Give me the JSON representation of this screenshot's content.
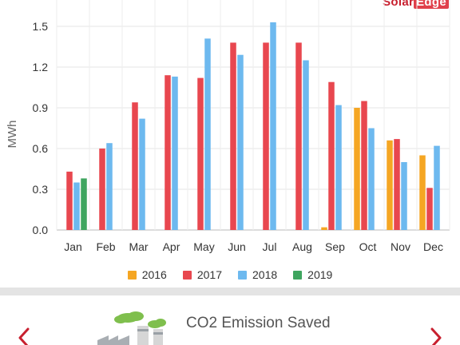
{
  "brand": {
    "name_part1": "Solar",
    "name_part2": "Edge"
  },
  "colors": {
    "2016": "#f5a623",
    "2017": "#e8474f",
    "2018": "#6db9ef",
    "2019": "#3fa55f"
  },
  "chart_data": {
    "type": "bar",
    "categories": [
      "Jan",
      "Feb",
      "Mar",
      "Apr",
      "May",
      "Jun",
      "Jul",
      "Aug",
      "Sep",
      "Oct",
      "Nov",
      "Dec"
    ],
    "series": [
      {
        "name": "2016",
        "values": [
          null,
          null,
          null,
          null,
          null,
          null,
          null,
          null,
          0.02,
          0.9,
          0.66,
          0.55
        ]
      },
      {
        "name": "2017",
        "values": [
          0.43,
          0.6,
          0.94,
          1.14,
          1.12,
          1.38,
          1.38,
          1.38,
          1.09,
          0.95,
          0.67,
          0.31
        ]
      },
      {
        "name": "2018",
        "values": [
          0.35,
          0.64,
          0.82,
          1.13,
          1.41,
          1.29,
          1.53,
          1.25,
          0.92,
          0.75,
          0.5,
          0.62
        ]
      },
      {
        "name": "2019",
        "values": [
          0.38,
          null,
          null,
          null,
          null,
          null,
          null,
          null,
          null,
          null,
          null,
          null
        ]
      }
    ],
    "ylabel": "MWh",
    "ylim": [
      0,
      1.6
    ],
    "yticks": [
      "0.0",
      "0.3",
      "0.6",
      "0.9",
      "1.2",
      "1.5"
    ],
    "ytick_values": [
      0,
      0.3,
      0.6,
      0.9,
      1.2,
      1.5
    ],
    "grid": true,
    "legend_position": "bottom"
  },
  "legend": [
    {
      "label": "2016"
    },
    {
      "label": "2017"
    },
    {
      "label": "2018"
    },
    {
      "label": "2019"
    }
  ],
  "savings": {
    "title": "CO2 Emission Saved",
    "prev_icon": "chevron-left-icon",
    "next_icon": "chevron-right-icon",
    "factory_icon": "factory-icon"
  }
}
